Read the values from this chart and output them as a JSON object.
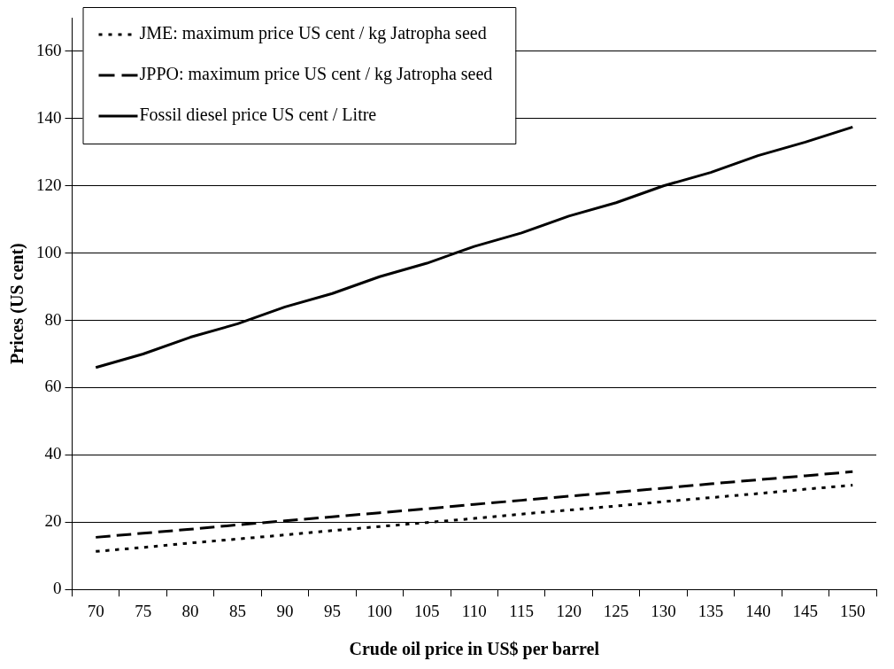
{
  "chart_data": {
    "type": "line",
    "xlabel": "Crude oil price in US$ per barrel",
    "ylabel": "Prices (US cent)",
    "categories": [
      "70",
      "75",
      "80",
      "85",
      "90",
      "95",
      "100",
      "105",
      "110",
      "115",
      "120",
      "125",
      "130",
      "135",
      "140",
      "145",
      "150"
    ],
    "series": [
      {
        "name": "JME: maximum price US cent / kg Jatropha seed",
        "color": "#000000",
        "line_style": "dotted",
        "values": [
          11.3,
          12.5,
          13.8,
          15.0,
          16.2,
          17.5,
          18.7,
          19.9,
          21.1,
          22.4,
          23.6,
          24.8,
          26.1,
          27.3,
          28.5,
          29.8,
          31.0
        ]
      },
      {
        "name": "JPPO: maximum price US cent / kg Jatropha seed",
        "color": "#000000",
        "line_style": "dashed",
        "values": [
          15.5,
          16.7,
          17.9,
          19.2,
          20.4,
          21.6,
          22.8,
          24.0,
          25.3,
          26.5,
          27.7,
          28.9,
          30.1,
          31.4,
          32.6,
          33.8,
          35.0
        ]
      },
      {
        "name": "Fossil diesel price US cent / Litre",
        "color": "#000000",
        "line_style": "solid",
        "values": [
          66,
          70,
          75,
          79,
          84,
          88,
          93,
          97,
          102,
          106,
          111,
          115,
          120,
          124,
          129,
          133,
          137.5
        ]
      }
    ],
    "ylim": [
      0,
      170
    ],
    "yticks": [
      0,
      20,
      40,
      60,
      80,
      100,
      120,
      140,
      160
    ],
    "grid": "y",
    "legend": "top left",
    "marker": "none"
  }
}
